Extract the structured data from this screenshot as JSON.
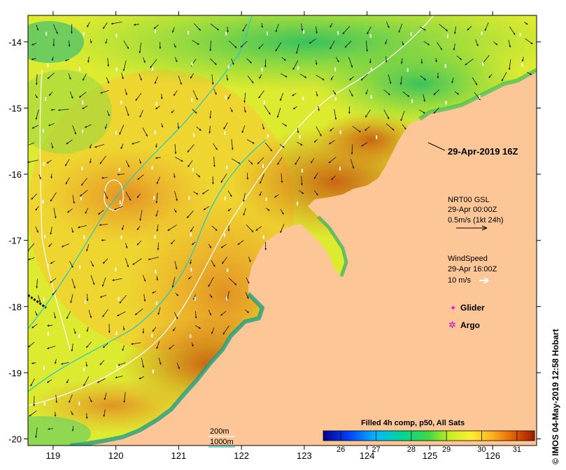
{
  "map": {
    "x_ticks": [
      "119",
      "120",
      "121",
      "122",
      "123",
      "124",
      "125",
      "126"
    ],
    "y_ticks": [
      "-14",
      "-15",
      "-16",
      "-17",
      "-18",
      "-19",
      "-20"
    ],
    "lon_range": [
      118.6,
      126.7
    ],
    "lat_range": [
      -20.1,
      -13.6
    ],
    "date_label": "29-Apr-2019 16Z",
    "credit": "© IMOS 04-May-2019 12:58 Hobart",
    "land_color": "#fdc697"
  },
  "legend": {
    "currents_title": "NRT00 GSL",
    "currents_time": "29-Apr 00:00Z",
    "currents_scale": "0.5m/s (1kt 24h)",
    "wind_title": "WindSpeed",
    "wind_time": "29-Apr 16:00Z",
    "wind_scale": "10 m/s",
    "glider": "Glider",
    "argo": "Argo",
    "glider_color": "#ff00ff",
    "argo_color": "#cc00cc"
  },
  "isobaths": {
    "shallow": "200m",
    "deep": "1000m",
    "shallow_color": "#ffffff",
    "deep_color": "#00c8c8"
  },
  "colorbar": {
    "title": "Filled 4h comp, p50, All Sats",
    "ticks": [
      "26",
      "27",
      "28",
      "29",
      "30",
      "31"
    ],
    "range": [
      25.5,
      31.5
    ],
    "colors": [
      "#0000a0",
      "#0050ff",
      "#00c8ff",
      "#00e070",
      "#a0e020",
      "#ffff40",
      "#ffc020",
      "#f08000",
      "#d05000",
      "#a02000"
    ]
  }
}
